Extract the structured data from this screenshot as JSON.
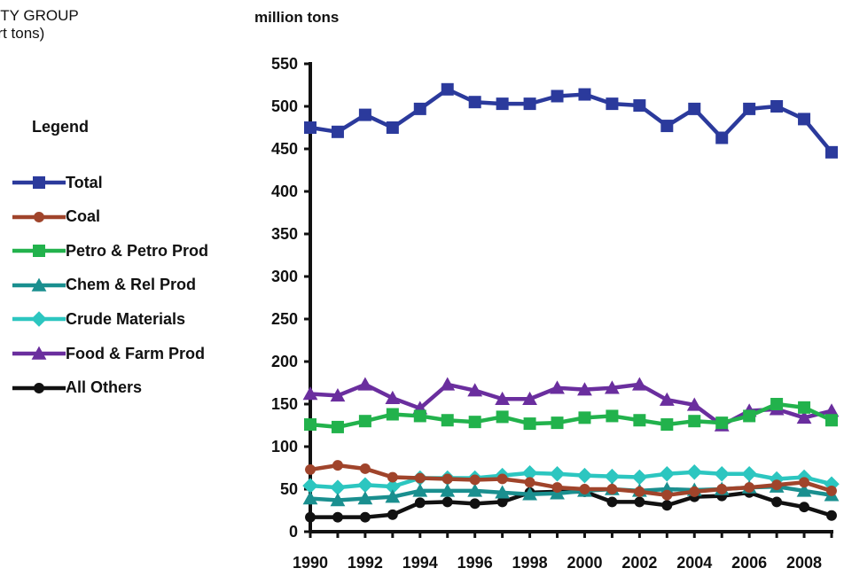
{
  "header": {
    "title_line1": "ODITY GROUP",
    "title_line2": "short tons)"
  },
  "chart_data": {
    "type": "line",
    "ylabel": "million tons",
    "ylim": [
      0,
      550
    ],
    "yticks": [
      0,
      50,
      100,
      150,
      200,
      250,
      300,
      350,
      400,
      450,
      500,
      550
    ],
    "x": [
      1990,
      1991,
      1992,
      1993,
      1994,
      1995,
      1996,
      1997,
      1998,
      1999,
      2000,
      2001,
      2002,
      2003,
      2004,
      2005,
      2006,
      2007,
      2008,
      2009
    ],
    "xtick_labels": [
      "1990",
      "1992",
      "1994",
      "1996",
      "1998",
      "2000",
      "2002",
      "2004",
      "2006",
      "2008"
    ],
    "legend_title": "Legend",
    "legend_position": "left",
    "grid": false,
    "series": [
      {
        "name": "Total",
        "color": "#2b3a9c",
        "marker": "square",
        "values": [
          475,
          470,
          490,
          475,
          497,
          520,
          505,
          503,
          503,
          512,
          514,
          503,
          501,
          477,
          497,
          463,
          497,
          500,
          485,
          446
        ]
      },
      {
        "name": "Coal",
        "color": "#a0442b",
        "marker": "circle",
        "values": [
          73,
          78,
          74,
          64,
          63,
          62,
          61,
          62,
          58,
          52,
          50,
          50,
          47,
          43,
          47,
          50,
          52,
          55,
          58,
          48
        ]
      },
      {
        "name": "Petro & Petro Prod",
        "color": "#22b24c",
        "marker": "square",
        "values": [
          126,
          123,
          130,
          138,
          136,
          131,
          129,
          135,
          127,
          128,
          134,
          136,
          131,
          126,
          130,
          128,
          136,
          150,
          146,
          131
        ]
      },
      {
        "name": "Chem & Rel Prod",
        "color": "#1a8f8f",
        "marker": "triangle",
        "values": [
          39,
          37,
          39,
          41,
          48,
          48,
          48,
          46,
          44,
          45,
          48,
          50,
          48,
          50,
          49,
          50,
          52,
          53,
          48,
          43
        ]
      },
      {
        "name": "Crude Materials",
        "color": "#2cc6c0",
        "marker": "diamond",
        "values": [
          54,
          52,
          55,
          53,
          63,
          63,
          63,
          66,
          69,
          68,
          66,
          65,
          64,
          68,
          70,
          68,
          68,
          62,
          64,
          56
        ]
      },
      {
        "name": "Food & Farm Prod",
        "color": "#6a2e9e",
        "marker": "triangle",
        "values": [
          162,
          160,
          173,
          157,
          145,
          173,
          166,
          156,
          156,
          169,
          167,
          169,
          173,
          155,
          149,
          125,
          142,
          144,
          134,
          142
        ]
      },
      {
        "name": "All Others",
        "color": "#111111",
        "marker": "circle",
        "values": [
          17,
          17,
          17,
          20,
          34,
          35,
          33,
          35,
          46,
          47,
          47,
          35,
          35,
          31,
          41,
          42,
          46,
          35,
          29,
          19
        ]
      }
    ]
  }
}
